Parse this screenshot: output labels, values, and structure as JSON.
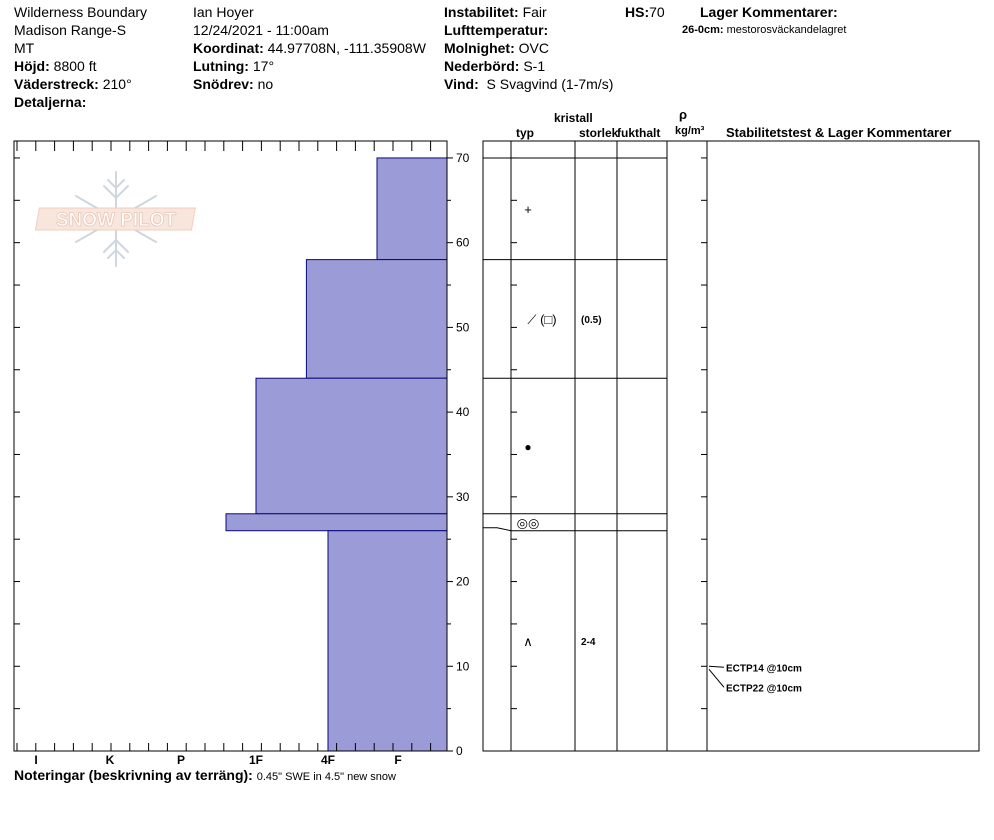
{
  "header": {
    "location": "Wilderness Boundary",
    "range": "Madison Range-S",
    "state": "MT",
    "elevation": {
      "label": "Höjd:",
      "value": "8800 ft"
    },
    "aspect": {
      "label": "Väderstreck:",
      "value": "210°"
    },
    "details": {
      "label": "Detaljerna:"
    },
    "observer": "Ian Hoyer",
    "datetime": "12/24/2021 - 11:00am",
    "coords": {
      "label": "Koordinat:",
      "value": "44.97708N, -111.35908W"
    },
    "slope": {
      "label": "Lutning:",
      "value": "17°"
    },
    "blowing_snow": {
      "label": "Snödrev:",
      "value": "no"
    },
    "instability": {
      "label": "Instabilitet:",
      "value": "Fair"
    },
    "air_temp": {
      "label": "Lufttemperatur:"
    },
    "sky": {
      "label": "Molnighet:",
      "value": "OVC"
    },
    "precip": {
      "label": "Nederbörd:",
      "value": "S-1"
    },
    "wind": {
      "label": "Vind:",
      "value": "S Svagvind (1-7m/s)"
    },
    "hs": {
      "label": "HS:",
      "value": "70"
    },
    "layer_comments": {
      "label": "Lager Kommentarer:",
      "item_label": "26-0cm:",
      "item_value": "mestorosväckandelagret"
    }
  },
  "columns": {
    "typ": "typ",
    "kristall": "kristall",
    "storlek": "storlek",
    "fukthalt": "fukthalt",
    "rho": "ρ",
    "density_unit": "kg/m³",
    "tests": "Stabilitetstest & Lager Kommentarer"
  },
  "logo": "SNOW PILOT",
  "notes": {
    "label": "Noteringar (beskrivning av terräng):",
    "value": "0.45\" SWE in 4.5\" new snow"
  },
  "chart_data": {
    "type": "bar",
    "subtype": "snow-profile-hardness",
    "hardness_scale": [
      "I",
      "K",
      "P",
      "1F",
      "4F",
      "F"
    ],
    "y_ticks": [
      0,
      10,
      20,
      30,
      40,
      50,
      60,
      70
    ],
    "ylim": [
      0,
      72
    ],
    "layers": [
      {
        "top": 70,
        "bottom": 58,
        "hardness": "F",
        "hardness_value": 5.7,
        "grain_symbol": "+",
        "size": ""
      },
      {
        "top": 58,
        "bottom": 44,
        "hardness": "4F",
        "hardness_value": 4.7,
        "grain_symbol": "⟋ (□)",
        "size": "(0.5)"
      },
      {
        "top": 44,
        "bottom": 28,
        "hardness": "1F",
        "hardness_value": 4.0,
        "grain_symbol": "●",
        "size": ""
      },
      {
        "top": 28,
        "bottom": 26,
        "hardness": "1F",
        "hardness_value": 3.6,
        "grain_symbol": "◎◎",
        "size": ""
      },
      {
        "top": 26,
        "bottom": 0,
        "hardness": "4F",
        "hardness_value": 5.0,
        "grain_symbol": "∧",
        "size": "2-4"
      }
    ],
    "tests": [
      {
        "depth": 10,
        "label": "ECTP14 @10cm"
      },
      {
        "depth": 10,
        "label": "ECTP22 @10cm"
      }
    ],
    "colors": {
      "bar_fill": "#9b9bd7",
      "bar_stroke": "#0a0a7a"
    }
  }
}
